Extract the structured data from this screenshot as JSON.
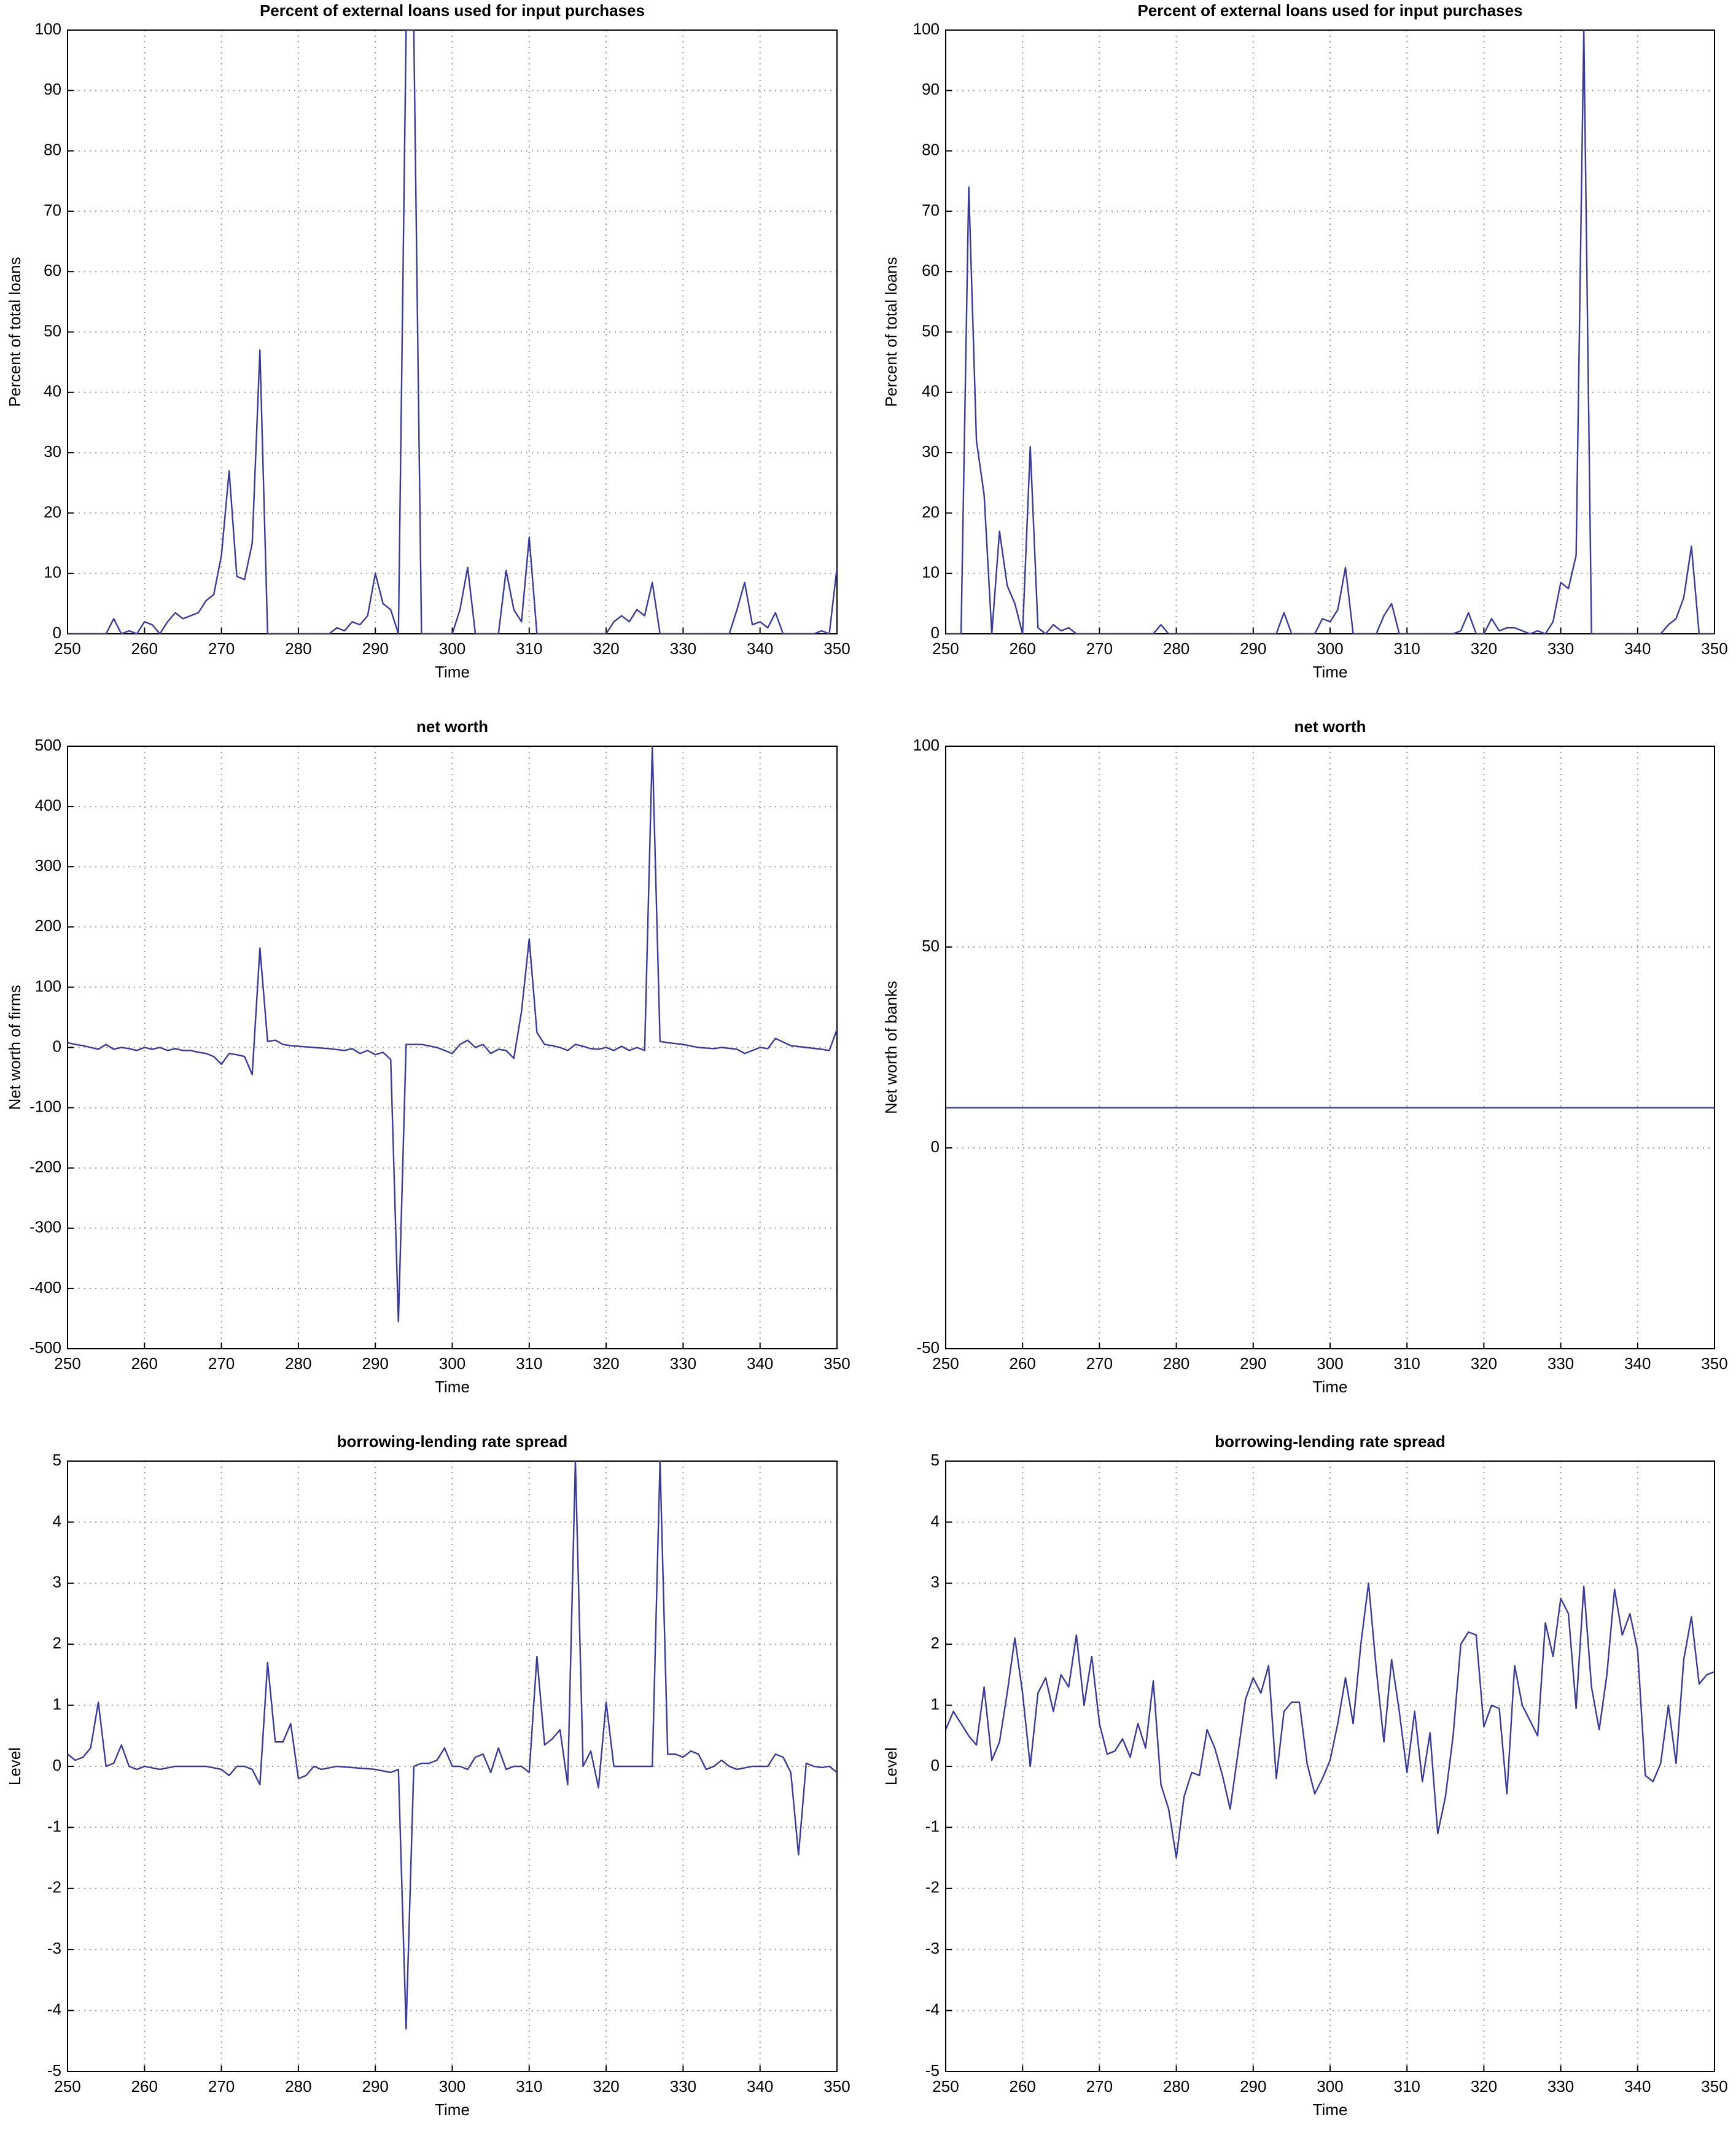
{
  "chart_data": [
    {
      "type": "line",
      "title": "Percent of external loans used for input purchases",
      "xlabel": "Time",
      "ylabel": "Percent of total loans",
      "color": "#3a3a9e",
      "xlim": [
        250,
        350
      ],
      "xticks": [
        250,
        260,
        270,
        280,
        290,
        300,
        310,
        320,
        330,
        340,
        350
      ],
      "ylim": [
        0,
        100
      ],
      "yticks": [
        0,
        10,
        20,
        30,
        40,
        50,
        60,
        70,
        80,
        90,
        100
      ],
      "grid": true,
      "x": [
        250,
        255,
        256,
        257,
        258,
        259,
        260,
        261,
        262,
        263,
        264,
        265,
        266,
        267,
        268,
        269,
        270,
        271,
        272,
        273,
        274,
        275,
        276,
        284,
        285,
        286,
        287,
        288,
        289,
        290,
        291,
        292,
        293,
        294,
        295,
        296,
        300,
        301,
        302,
        303,
        306,
        307,
        308,
        309,
        310,
        311,
        320,
        321,
        322,
        323,
        324,
        325,
        326,
        327,
        336,
        337,
        338,
        339,
        340,
        341,
        342,
        343,
        347,
        348,
        349,
        350
      ],
      "values": [
        0,
        0,
        2.5,
        0,
        0.5,
        0,
        2,
        1.5,
        0,
        2,
        3.5,
        2.5,
        3,
        3.5,
        5.5,
        6.5,
        13,
        27,
        9.5,
        9,
        15,
        47,
        0,
        0,
        1,
        0.5,
        2,
        1.5,
        3,
        10,
        5,
        4,
        0,
        100,
        100,
        0,
        0,
        4,
        11,
        0,
        0,
        10.5,
        4,
        2,
        16,
        0,
        0,
        2,
        3,
        2,
        4,
        3,
        8.5,
        0,
        0,
        4,
        8.5,
        1.5,
        2,
        1,
        3.5,
        0,
        0,
        0.5,
        0,
        11
      ]
    },
    {
      "type": "line",
      "title": "Percent of external loans used for input purchases",
      "xlabel": "Time",
      "ylabel": "Percent of total loans",
      "color": "#3a3a9e",
      "xlim": [
        250,
        350
      ],
      "xticks": [
        250,
        260,
        270,
        280,
        290,
        300,
        310,
        320,
        330,
        340,
        350
      ],
      "ylim": [
        0,
        100
      ],
      "yticks": [
        0,
        10,
        20,
        30,
        40,
        50,
        60,
        70,
        80,
        90,
        100
      ],
      "grid": true,
      "x": [
        250,
        252,
        253,
        254,
        255,
        256,
        257,
        258,
        259,
        260,
        261,
        262,
        263,
        264,
        265,
        266,
        267,
        277,
        278,
        279,
        293,
        294,
        295,
        298,
        299,
        300,
        301,
        302,
        303,
        306,
        307,
        308,
        309,
        316,
        317,
        318,
        319,
        320,
        321,
        322,
        323,
        324,
        325,
        326,
        327,
        328,
        329,
        330,
        331,
        332,
        333,
        334,
        343,
        344,
        345,
        346,
        347,
        348,
        350
      ],
      "values": [
        0,
        0,
        74,
        32,
        23,
        0,
        17,
        8,
        5,
        0,
        31,
        1,
        0,
        1.5,
        0.5,
        1,
        0,
        0,
        1.5,
        0,
        0,
        3.5,
        0,
        0,
        2.5,
        2,
        4,
        11,
        0,
        0,
        3,
        5,
        0,
        0,
        0.5,
        3.5,
        0,
        0,
        2.5,
        0.5,
        1,
        1,
        0.5,
        0,
        0.5,
        0,
        2,
        8.5,
        7.5,
        13,
        100,
        0,
        0,
        1.5,
        2.5,
        6,
        14.5,
        0,
        0
      ]
    },
    {
      "type": "line",
      "title": "net worth",
      "xlabel": "Time",
      "ylabel": "Net worth of firms",
      "color": "#3a3a9e",
      "xlim": [
        250,
        350
      ],
      "xticks": [
        250,
        260,
        270,
        280,
        290,
        300,
        310,
        320,
        330,
        340,
        350
      ],
      "ylim": [
        -500,
        500
      ],
      "yticks": [
        -500,
        -400,
        -300,
        -200,
        -100,
        0,
        100,
        200,
        300,
        400,
        500
      ],
      "grid": true,
      "x": [
        250,
        251,
        252,
        253,
        254,
        255,
        256,
        257,
        258,
        259,
        260,
        261,
        262,
        263,
        264,
        265,
        266,
        267,
        268,
        269,
        270,
        271,
        272,
        273,
        274,
        275,
        276,
        277,
        278,
        279,
        280,
        282,
        284,
        286,
        287,
        288,
        289,
        290,
        291,
        292,
        293,
        294,
        296,
        298,
        299,
        300,
        301,
        302,
        303,
        304,
        305,
        306,
        307,
        308,
        309,
        310,
        311,
        312,
        313,
        314,
        315,
        316,
        317,
        318,
        319,
        320,
        321,
        322,
        323,
        324,
        325,
        326,
        327,
        328,
        330,
        332,
        334,
        335,
        337,
        338,
        340,
        341,
        342,
        344,
        346,
        348,
        349,
        350
      ],
      "values": [
        8,
        5,
        3,
        0,
        -3,
        5,
        -3,
        0,
        -2,
        -5,
        0,
        -3,
        0,
        -5,
        -2,
        -5,
        -5,
        -8,
        -10,
        -15,
        -28,
        -10,
        -12,
        -15,
        -45,
        165,
        10,
        12,
        5,
        3,
        2,
        0,
        -2,
        -5,
        -2,
        -10,
        -5,
        -12,
        -8,
        -20,
        -455,
        5,
        5,
        0,
        -5,
        -10,
        5,
        12,
        0,
        5,
        -10,
        -3,
        -5,
        -18,
        60,
        180,
        25,
        5,
        3,
        0,
        -5,
        5,
        2,
        -2,
        -3,
        0,
        -5,
        2,
        -5,
        0,
        -5,
        500,
        10,
        8,
        5,
        0,
        -2,
        0,
        -3,
        -10,
        0,
        -2,
        15,
        3,
        0,
        -3,
        -5,
        30
      ]
    },
    {
      "type": "line",
      "title": "net worth",
      "xlabel": "Time",
      "ylabel": "Net worth of banks",
      "color": "#3a3a9e",
      "xlim": [
        250,
        350
      ],
      "xticks": [
        250,
        260,
        270,
        280,
        290,
        300,
        310,
        320,
        330,
        340,
        350
      ],
      "ylim": [
        -50,
        100
      ],
      "yticks": [
        -50,
        0,
        50,
        100
      ],
      "grid": true,
      "x": [
        250,
        350
      ],
      "values": [
        10,
        10
      ]
    },
    {
      "type": "line",
      "title": "borrowing-lending rate spread",
      "xlabel": "Time",
      "ylabel": "Level",
      "color": "#3a3a9e",
      "xlim": [
        250,
        350
      ],
      "xticks": [
        250,
        260,
        270,
        280,
        290,
        300,
        310,
        320,
        330,
        340,
        350
      ],
      "ylim": [
        -5,
        5
      ],
      "yticks": [
        -5,
        -4,
        -3,
        -2,
        -1,
        0,
        1,
        2,
        3,
        4,
        5
      ],
      "grid": true,
      "x": [
        250,
        251,
        252,
        253,
        254,
        255,
        256,
        257,
        258,
        259,
        260,
        262,
        264,
        266,
        268,
        270,
        271,
        272,
        273,
        274,
        275,
        276,
        277,
        278,
        279,
        280,
        281,
        282,
        283,
        285,
        290,
        292,
        293,
        294,
        295,
        296,
        297,
        298,
        299,
        300,
        301,
        302,
        303,
        304,
        305,
        306,
        307,
        308,
        309,
        310,
        311,
        312,
        313,
        314,
        315,
        316,
        317,
        318,
        319,
        320,
        321,
        326,
        327,
        328,
        329,
        330,
        331,
        332,
        333,
        334,
        335,
        336,
        337,
        339,
        341,
        342,
        343,
        344,
        345,
        346,
        347,
        348,
        349,
        350
      ],
      "values": [
        0.2,
        0.1,
        0.15,
        0.3,
        1.05,
        0,
        0.05,
        0.35,
        0,
        -0.05,
        0,
        -0.05,
        0,
        0,
        0,
        -0.05,
        -0.15,
        0,
        0,
        -0.05,
        -0.3,
        1.7,
        0.4,
        0.4,
        0.7,
        -0.2,
        -0.15,
        0,
        -0.05,
        0,
        -0.05,
        -0.1,
        -0.05,
        -4.3,
        0,
        0.05,
        0.05,
        0.1,
        0.3,
        0,
        0,
        -0.05,
        0.15,
        0.2,
        -0.1,
        0.3,
        -0.05,
        0,
        0,
        -0.1,
        1.8,
        0.35,
        0.45,
        0.6,
        -0.3,
        5,
        0,
        0.25,
        -0.35,
        1.05,
        0,
        0,
        5,
        0.2,
        0.2,
        0.15,
        0.25,
        0.2,
        -0.05,
        0,
        0.1,
        0,
        -0.05,
        0,
        0,
        0.2,
        0.15,
        -0.1,
        -1.45,
        0.05,
        0,
        -0.02,
        0,
        -0.1
      ]
    },
    {
      "type": "line",
      "title": "borrowing-lending rate spread",
      "xlabel": "Time",
      "ylabel": "Level",
      "color": "#3a3a9e",
      "xlim": [
        250,
        350
      ],
      "xticks": [
        250,
        260,
        270,
        280,
        290,
        300,
        310,
        320,
        330,
        340,
        350
      ],
      "ylim": [
        -5,
        5
      ],
      "yticks": [
        -5,
        -4,
        -3,
        -2,
        -1,
        0,
        1,
        2,
        3,
        4,
        5
      ],
      "grid": true,
      "x": [
        250,
        251,
        252,
        253,
        254,
        255,
        256,
        257,
        258,
        259,
        260,
        261,
        262,
        263,
        264,
        265,
        266,
        267,
        268,
        269,
        270,
        271,
        272,
        273,
        274,
        275,
        276,
        277,
        278,
        279,
        280,
        281,
        282,
        283,
        284,
        285,
        286,
        287,
        288,
        289,
        290,
        291,
        292,
        293,
        294,
        295,
        296,
        297,
        298,
        299,
        300,
        301,
        302,
        303,
        304,
        305,
        306,
        307,
        308,
        309,
        310,
        311,
        312,
        313,
        314,
        315,
        316,
        317,
        318,
        319,
        320,
        321,
        322,
        323,
        324,
        325,
        326,
        327,
        328,
        329,
        330,
        331,
        332,
        333,
        334,
        335,
        336,
        337,
        338,
        339,
        340,
        341,
        342,
        343,
        344,
        345,
        346,
        347,
        348,
        349,
        350
      ],
      "values": [
        0.6,
        0.9,
        0.7,
        0.5,
        0.35,
        1.3,
        0.1,
        0.4,
        1.2,
        2.1,
        1.2,
        0,
        1.2,
        1.45,
        0.9,
        1.5,
        1.3,
        2.15,
        1.0,
        1.8,
        0.7,
        0.2,
        0.25,
        0.45,
        0.15,
        0.7,
        0.3,
        1.4,
        -0.3,
        -0.7,
        -1.5,
        -0.5,
        -0.1,
        -0.15,
        0.6,
        0.3,
        -0.15,
        -0.7,
        0.2,
        1.1,
        1.45,
        1.2,
        1.65,
        -0.2,
        0.9,
        1.05,
        1.05,
        0.05,
        -0.45,
        -0.2,
        0.1,
        0.7,
        1.45,
        0.7,
        2.0,
        3.0,
        1.6,
        0.4,
        1.75,
        0.9,
        -0.1,
        0.9,
        -0.25,
        0.55,
        -1.1,
        -0.5,
        0.5,
        2.0,
        2.2,
        2.15,
        0.65,
        1.0,
        0.95,
        -0.45,
        1.65,
        1.0,
        0.75,
        0.5,
        2.35,
        1.8,
        2.75,
        2.5,
        0.95,
        2.95,
        1.3,
        0.6,
        1.5,
        2.9,
        2.15,
        2.5,
        1.9,
        -0.15,
        -0.25,
        0.05,
        1.0,
        0.05,
        1.75,
        2.45,
        1.35,
        1.5,
        1.55
      ]
    }
  ]
}
